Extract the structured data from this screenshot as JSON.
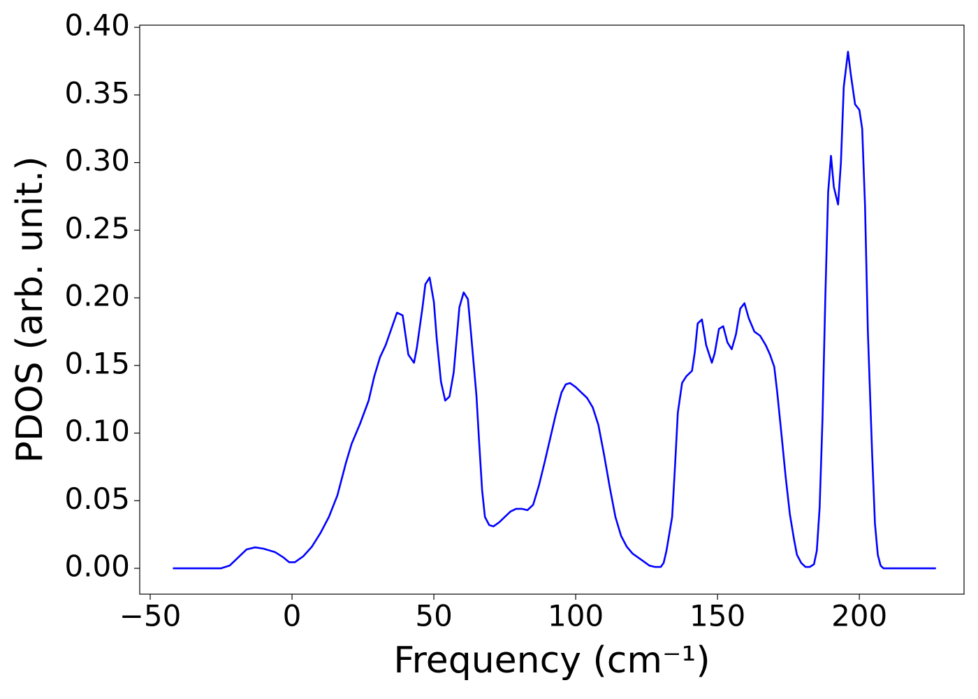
{
  "chart_data": {
    "type": "line",
    "xlabel": "Frequency (cm⁻¹)",
    "ylabel": "PDOS (arb. unit.)",
    "xlim": [
      -53.7,
      236.9
    ],
    "ylim": [
      -0.0191,
      0.4016
    ],
    "xticks": [
      {
        "value": -50,
        "label": "−50"
      },
      0,
      50,
      100,
      150,
      200
    ],
    "yticks": [
      {
        "value": 0,
        "label": "0.00"
      },
      {
        "value": 0.05,
        "label": "0.05"
      },
      {
        "value": 0.1,
        "label": "0.10"
      },
      {
        "value": 0.15,
        "label": "0.15"
      },
      {
        "value": 0.2,
        "label": "0.20"
      },
      {
        "value": 0.25,
        "label": "0.25"
      },
      {
        "value": 0.3,
        "label": "0.30"
      },
      {
        "value": 0.35,
        "label": "0.35"
      },
      {
        "value": 0.4,
        "label": "0.40"
      }
    ],
    "grid": false,
    "x": [
      -42,
      -25,
      -22,
      -19,
      -16,
      -13,
      -10,
      -6,
      -3,
      -1,
      1,
      4,
      7,
      10,
      13,
      16,
      19,
      21,
      24,
      27,
      29,
      31,
      33,
      35,
      37,
      39,
      41,
      43,
      44,
      46,
      47,
      48.5,
      50,
      51,
      52.5,
      54,
      55.5,
      57,
      59,
      60.5,
      62,
      63,
      65,
      66,
      67,
      68,
      69.5,
      71,
      73,
      75,
      77,
      79,
      81,
      83,
      85,
      87,
      89,
      91,
      93,
      95,
      96.5,
      98,
      100,
      102,
      104,
      106,
      108,
      110,
      112,
      114,
      116,
      118,
      120,
      122,
      124,
      126,
      128,
      130,
      131,
      132,
      134,
      135,
      136,
      137.5,
      139,
      141,
      142,
      143,
      144.5,
      146,
      148,
      149,
      150.5,
      152,
      153.5,
      155,
      156.5,
      158,
      159.5,
      161,
      163,
      165,
      167,
      168.5,
      170,
      171,
      172.5,
      174,
      175.5,
      177,
      178,
      179.5,
      181,
      182.5,
      184,
      185,
      186,
      187,
      188,
      189,
      190,
      191,
      192.5,
      193.5,
      194.5,
      196,
      197,
      198.5,
      200,
      201,
      202,
      203,
      204.5,
      205.5,
      206.5,
      207.5,
      208.5,
      227
    ],
    "series": [
      {
        "name": "PDOS",
        "color": "#0000ff",
        "values": [
          0,
          0,
          0.002,
          0.008,
          0.014,
          0.0155,
          0.0145,
          0.012,
          0.008,
          0.0045,
          0.0045,
          0.009,
          0.016,
          0.026,
          0.038,
          0.054,
          0.078,
          0.092,
          0.107,
          0.124,
          0.142,
          0.156,
          0.165,
          0.177,
          0.189,
          0.187,
          0.158,
          0.152,
          0.163,
          0.193,
          0.21,
          0.215,
          0.197,
          0.17,
          0.138,
          0.124,
          0.127,
          0.145,
          0.193,
          0.204,
          0.199,
          0.176,
          0.128,
          0.092,
          0.058,
          0.038,
          0.032,
          0.031,
          0.034,
          0.038,
          0.042,
          0.044,
          0.044,
          0.043,
          0.047,
          0.061,
          0.078,
          0.096,
          0.114,
          0.13,
          0.136,
          0.137,
          0.134,
          0.13,
          0.126,
          0.119,
          0.106,
          0.084,
          0.06,
          0.038,
          0.024,
          0.016,
          0.011,
          0.008,
          0.005,
          0.002,
          0.001,
          0.001,
          0.004,
          0.013,
          0.038,
          0.075,
          0.115,
          0.137,
          0.142,
          0.146,
          0.16,
          0.181,
          0.184,
          0.165,
          0.152,
          0.159,
          0.177,
          0.179,
          0.167,
          0.162,
          0.173,
          0.192,
          0.196,
          0.185,
          0.175,
          0.172,
          0.165,
          0.158,
          0.149,
          0.131,
          0.1,
          0.068,
          0.04,
          0.021,
          0.01,
          0.004,
          0.001,
          0.001,
          0.003,
          0.013,
          0.045,
          0.11,
          0.2,
          0.278,
          0.305,
          0.282,
          0.269,
          0.3,
          0.356,
          0.382,
          0.365,
          0.343,
          0.339,
          0.325,
          0.268,
          0.175,
          0.085,
          0.033,
          0.01,
          0.002,
          0,
          0
        ]
      }
    ]
  }
}
